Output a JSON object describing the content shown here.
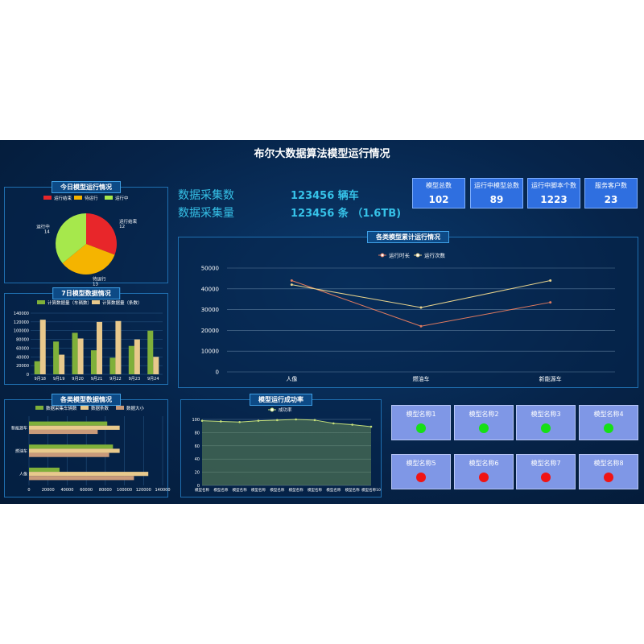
{
  "header": {
    "title": "布尔大数据算法模型运行情况"
  },
  "stats": {
    "collect_count_label": "数据采集数",
    "collect_count_value": "123456 辆车",
    "collect_volume_label": "数据采集量",
    "collect_volume_value": "123456 条 （1.6TB)"
  },
  "kpis": [
    {
      "label": "模型总数",
      "value": "102"
    },
    {
      "label": "运行中模型总数",
      "value": "89"
    },
    {
      "label": "运行中脚本个数",
      "value": "1223"
    },
    {
      "label": "服务客户数",
      "value": "23"
    }
  ],
  "models": [
    {
      "name": "模型名称1",
      "status_color": "#16e016"
    },
    {
      "name": "模型名称2",
      "status_color": "#16e016"
    },
    {
      "name": "模型名称3",
      "status_color": "#16e016"
    },
    {
      "name": "模型名称4",
      "status_color": "#16e016"
    },
    {
      "name": "模型名称5",
      "status_color": "#f01414"
    },
    {
      "name": "模型名称6",
      "status_color": "#f01414"
    },
    {
      "name": "模型名称7",
      "status_color": "#f01414"
    },
    {
      "name": "模型名称8",
      "status_color": "#f01414"
    }
  ],
  "chart_data": [
    {
      "type": "pie",
      "title": "今日模型运行情况",
      "categories": [
        "运行结束",
        "待运行",
        "运行中"
      ],
      "values": [
        12,
        13,
        14
      ],
      "colors": [
        "#e8262a",
        "#f5b400",
        "#a6e84c"
      ],
      "legend": "top"
    },
    {
      "type": "bar",
      "title": "7日模型数据情况",
      "categories": [
        "9月18",
        "9月19",
        "9月20",
        "9月21",
        "9月22",
        "9月23",
        "9月24"
      ],
      "series": [
        {
          "name": "计算数据量（车辆数）",
          "values": [
            30000,
            75000,
            95000,
            55000,
            38000,
            65000,
            100000
          ],
          "color": "#7fb03a"
        },
        {
          "name": "计算数据量（条数）",
          "values": [
            125000,
            45000,
            82000,
            120000,
            122000,
            80000,
            40000
          ],
          "color": "#e8c98c"
        }
      ],
      "ylim": [
        0,
        140000
      ],
      "yticks": [
        0,
        20000,
        40000,
        60000,
        80000,
        100000,
        120000,
        140000
      ],
      "legend": "top"
    },
    {
      "type": "bar",
      "orientation": "horizontal",
      "title": "各类模型数据情况",
      "categories": [
        "人像",
        "燃油车",
        "新能源车"
      ],
      "series": [
        {
          "name": "数据采集车辆数",
          "values": [
            32000,
            88000,
            82000
          ],
          "color": "#7fb03a"
        },
        {
          "name": "数据条数",
          "values": [
            125000,
            95000,
            95000
          ],
          "color": "#e8c98c"
        },
        {
          "name": "数据大小",
          "values": [
            110000,
            84000,
            72000
          ],
          "color": "#c99a7a"
        }
      ],
      "xlim": [
        0,
        140000
      ],
      "xticks": [
        0,
        20000,
        40000,
        60000,
        80000,
        100000,
        120000,
        140000
      ],
      "legend": "top"
    },
    {
      "type": "line",
      "title": "各类模型累计运行情况",
      "categories": [
        "人像",
        "燃油车",
        "新能源车"
      ],
      "series": [
        {
          "name": "运行时长",
          "values": [
            44000,
            22000,
            33500
          ],
          "color": "#e07a5f"
        },
        {
          "name": "运行次数",
          "values": [
            42000,
            31000,
            44000
          ],
          "color": "#e8d38c"
        }
      ],
      "ylim": [
        0,
        50000
      ],
      "yticks": [
        0,
        10000,
        20000,
        30000,
        40000,
        50000
      ],
      "legend": "top"
    },
    {
      "type": "area",
      "title": "模型运行成功率",
      "categories": [
        "模型名称",
        "模型名称",
        "模型名称",
        "模型名称",
        "模型名称",
        "模型名称",
        "模型名称",
        "模型名称",
        "模型名称",
        "模型名称10"
      ],
      "series": [
        {
          "name": "成功率",
          "values": [
            98,
            97,
            96,
            98,
            99,
            100,
            99,
            94,
            92,
            89
          ],
          "color": "#c6e07a"
        }
      ],
      "ylim": [
        0,
        100
      ],
      "yticks": [
        0,
        20,
        40,
        60,
        80,
        100
      ],
      "legend": "top"
    }
  ]
}
